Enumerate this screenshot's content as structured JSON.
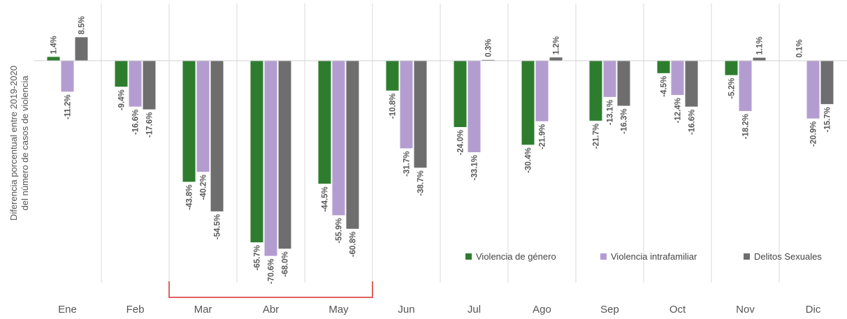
{
  "chart_data": {
    "type": "bar",
    "title": "",
    "xlabel": "",
    "ylabel_lines": [
      "Diferencia porcentual entre 2019-2020",
      "del número de casos de violencia"
    ],
    "categories": [
      "Ene",
      "Feb",
      "Mar",
      "Abr",
      "May",
      "Jun",
      "Jul",
      "Ago",
      "Sep",
      "Oct",
      "Nov",
      "Dic"
    ],
    "series": [
      {
        "name": "Violencia de género",
        "color": "#2e7d2e",
        "values": [
          1.4,
          -9.4,
          -43.8,
          -65.7,
          -44.5,
          -10.8,
          -24.0,
          -30.4,
          -21.7,
          -4.5,
          -5.2,
          0.1
        ],
        "labels": [
          "1.4%",
          "-9.4%",
          "-43.8%",
          "-65.7%",
          "-44.5%",
          "-10.8%",
          "-24.0%",
          "-30.4%",
          "-21.7%",
          "-4.5%",
          "-5.2%",
          "0.1%"
        ]
      },
      {
        "name": "Violencia intrafamiliar",
        "color": "#b39dd0",
        "values": [
          -11.2,
          -16.6,
          -40.2,
          -70.6,
          -55.9,
          -31.7,
          -33.1,
          -21.9,
          -13.1,
          -12.4,
          -18.2,
          -20.9
        ],
        "labels": [
          "-11.2%",
          "-16.6%",
          "-40.2%",
          "-70.6%",
          "-55.9%",
          "-31.7%",
          "-33.1%",
          "-21.9%",
          "-13.1%",
          "-12.4%",
          "-18.2%",
          "-20.9%"
        ]
      },
      {
        "name": "Delitos Sexuales",
        "color": "#6e6e6e",
        "values": [
          8.5,
          -17.6,
          -54.5,
          -68.0,
          -60.8,
          -38.7,
          0.3,
          1.2,
          -16.3,
          -16.6,
          1.1,
          -15.7
        ],
        "labels": [
          "8.5%",
          "-17.6%",
          "-54.5%",
          "-68.0%",
          "-60.8%",
          "-38.7%",
          "0.3%",
          "1.2%",
          "-16.3%",
          "-16.6%",
          "1.1%",
          "-15.7%"
        ]
      }
    ],
    "ylim": [
      -80,
      15
    ],
    "grid": "vertical category separators",
    "legend_position": "bottom-right",
    "highlight": {
      "from": "Mar",
      "to": "May",
      "color": "#e06060"
    }
  }
}
